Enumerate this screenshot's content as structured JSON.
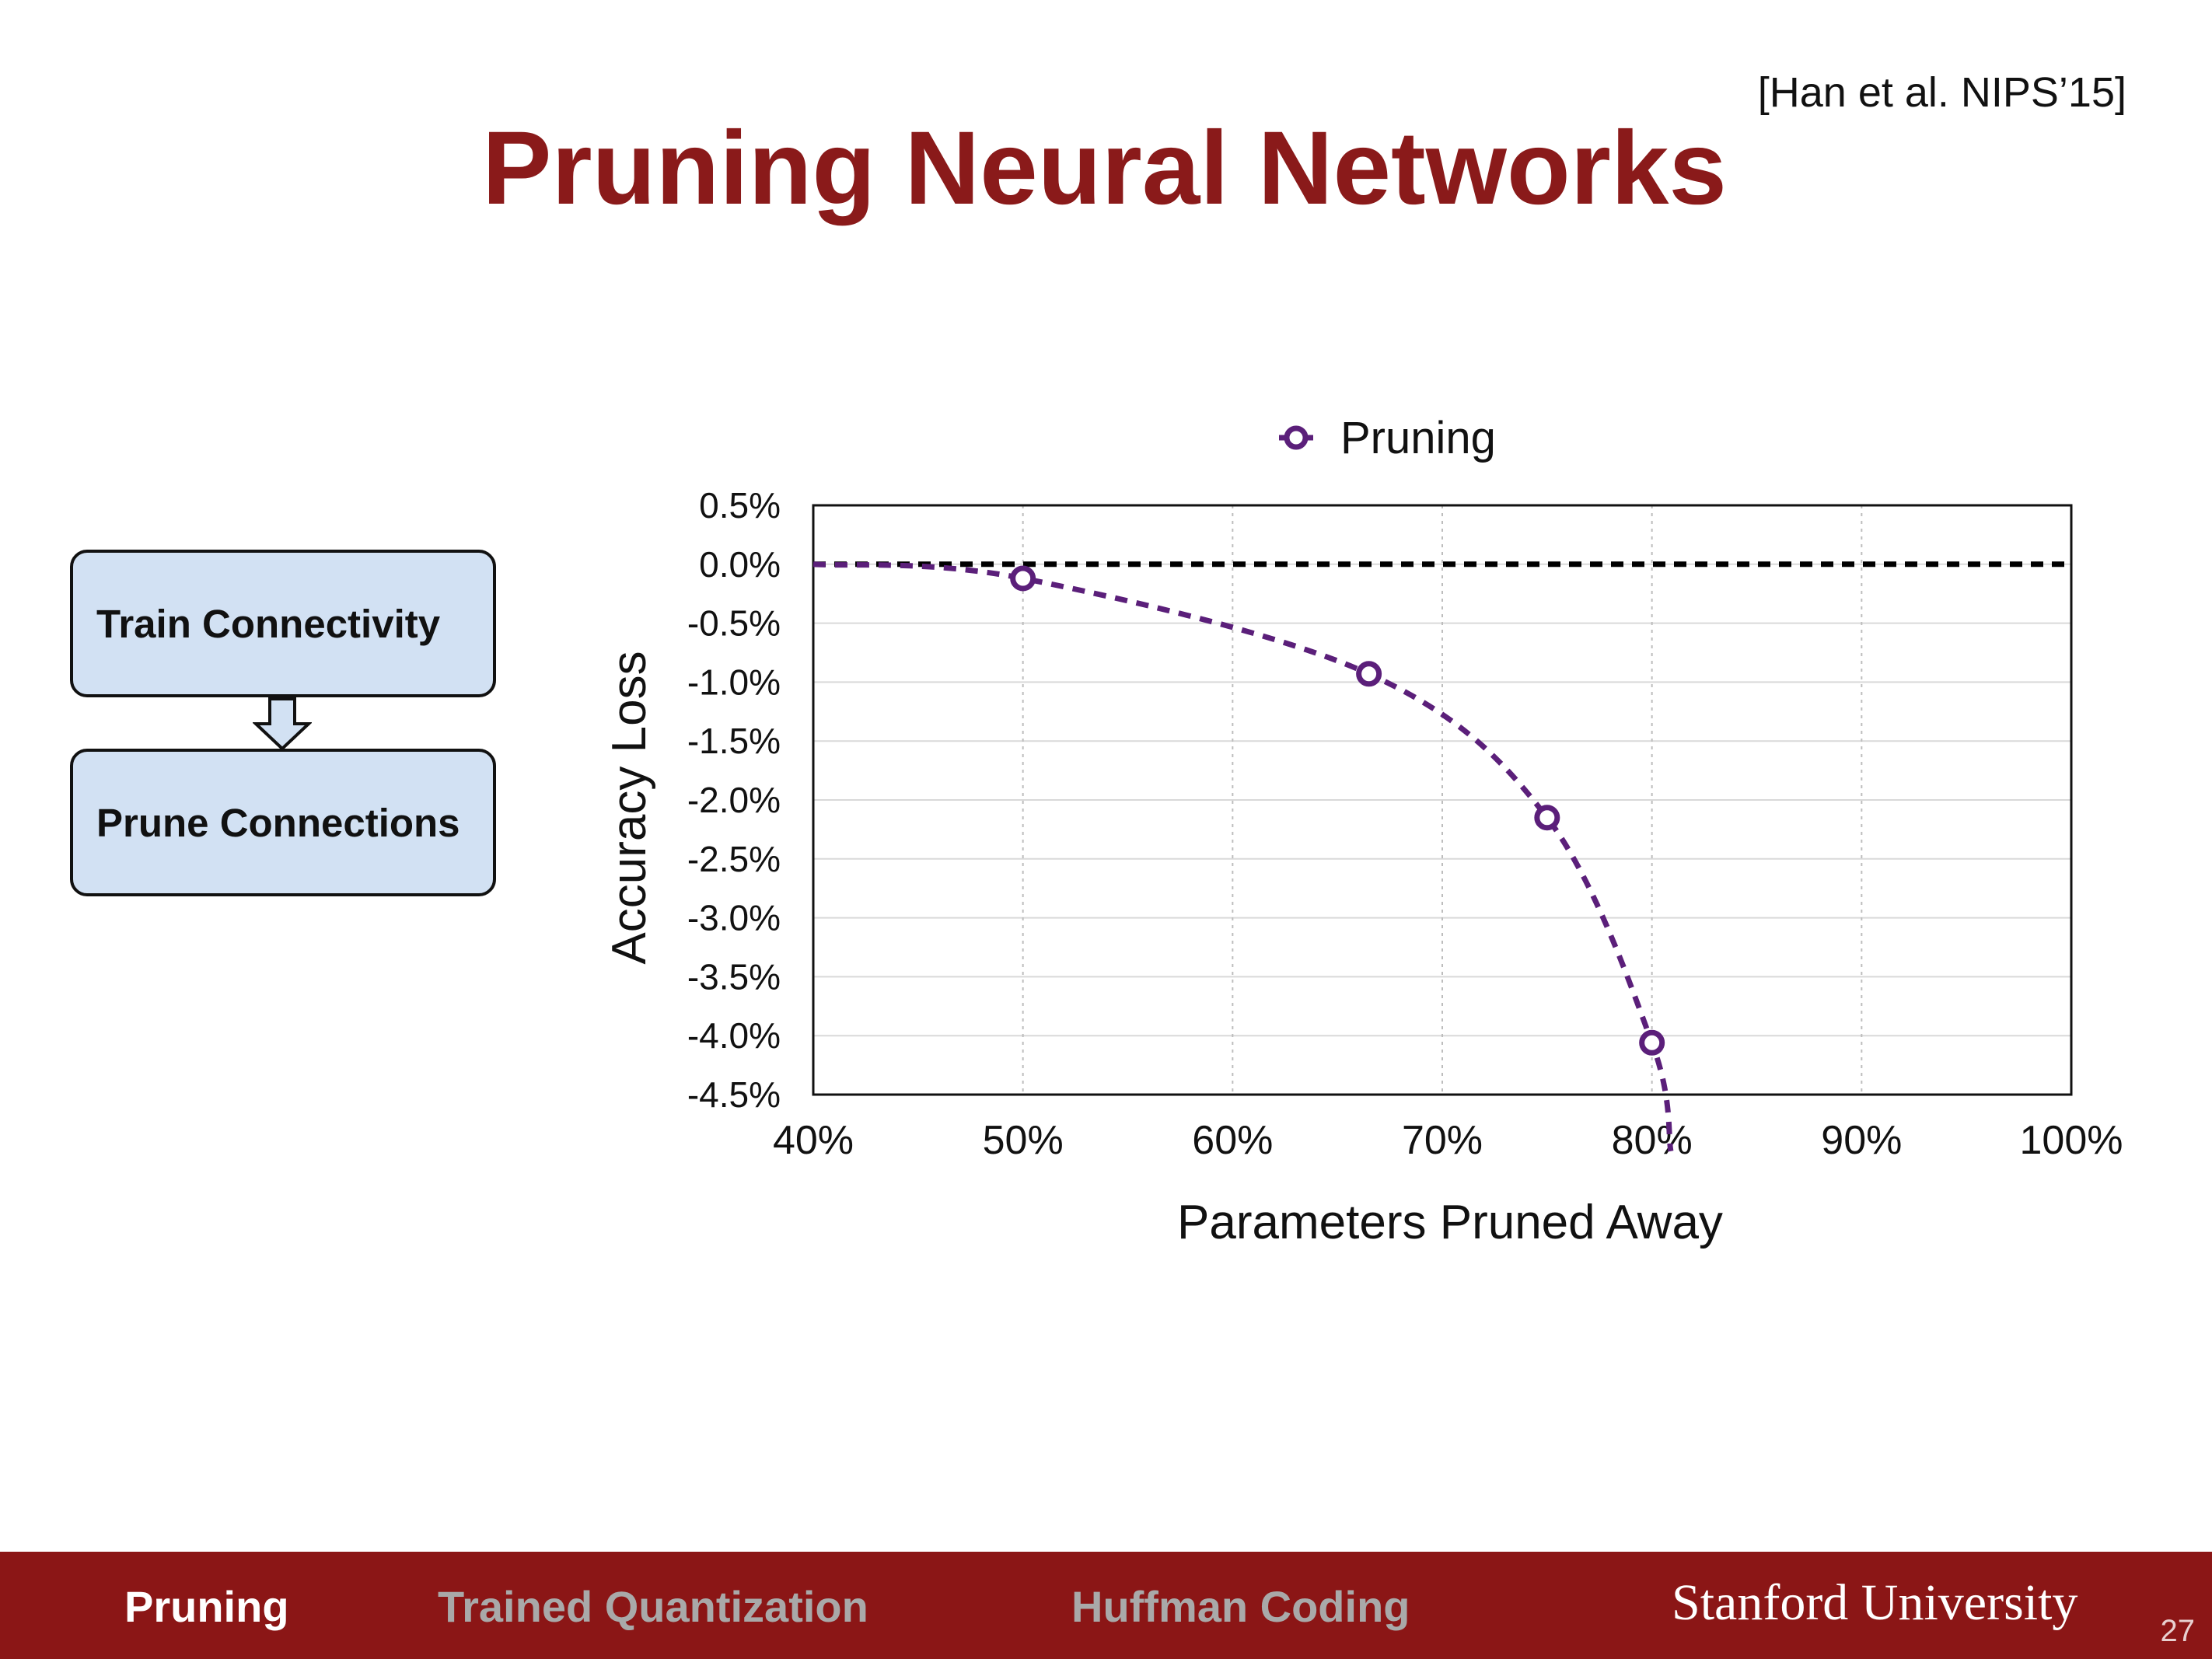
{
  "slide": {
    "title": "Pruning Neural Networks",
    "citation": "[Han et al. NIPS’15]",
    "page_number": "27"
  },
  "flowchart": {
    "steps": [
      "Train Connectivity",
      "Prune Connections"
    ],
    "box_fill": "#d2e1f3"
  },
  "footer": {
    "items": [
      {
        "label": "Pruning",
        "active": true
      },
      {
        "label": "Trained Quantization",
        "active": false
      },
      {
        "label": "Huffman Coding",
        "active": false
      }
    ],
    "brand": "Stanford University",
    "background": "#8b1616"
  },
  "chart_data": {
    "type": "line",
    "xlabel": "Parameters Pruned Away",
    "ylabel": "Accuracy Loss",
    "xlim": [
      40,
      100
    ],
    "ylim": [
      -4.5,
      0.5
    ],
    "x_ticks": [
      "40%",
      "50%",
      "60%",
      "70%",
      "80%",
      "90%",
      "100%"
    ],
    "y_ticks": [
      "0.5%",
      "0.0%",
      "-0.5%",
      "-1.0%",
      "-1.5%",
      "-2.0%",
      "-2.5%",
      "-3.0%",
      "-3.5%",
      "-4.0%",
      "-4.5%"
    ],
    "legend_position": "top-center",
    "grid": true,
    "series": [
      {
        "name": "Pruning",
        "color": "#5b1f7a",
        "marker": "open-circle",
        "line": "dashed",
        "x": [
          50,
          66.5,
          75,
          80
        ],
        "y": [
          -0.12,
          -0.93,
          -2.15,
          -4.06
        ]
      }
    ],
    "reference_line": {
      "y": 0.0,
      "color": "#000000",
      "line": "dashed"
    }
  }
}
